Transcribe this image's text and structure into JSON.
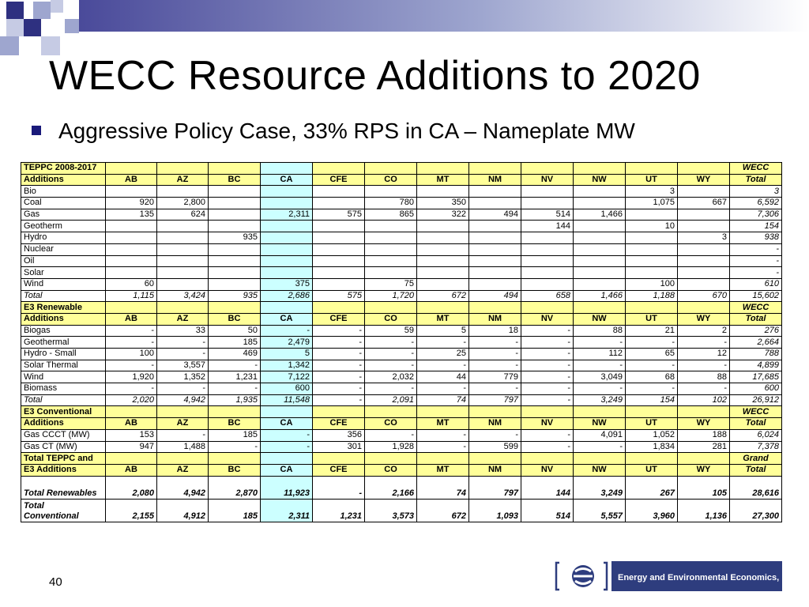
{
  "slide": {
    "title": "WECC Resource Additions to 2020",
    "bullet": "Aggressive Policy Case, 33% RPS in CA – Nameplate MW",
    "page_number": "40",
    "logo_text": "Energy and Environmental Economics, Inc.",
    "colors": {
      "accent": "#1a1a7a",
      "header_fill": "#ffff99",
      "ca_fill": "#ccffff",
      "logo_bg": "#2e3d7e"
    }
  },
  "table": {
    "columns": [
      "AB",
      "AZ",
      "BC",
      "CA",
      "CFE",
      "CO",
      "MT",
      "NM",
      "NV",
      "NW",
      "UT",
      "WY"
    ],
    "sections": [
      {
        "header_label_1": "TEPPC 2008-2017",
        "header_label_2": "Additions",
        "total_header_1": "WECC",
        "total_header_2": "Total",
        "rows": [
          {
            "label": "Bio",
            "cells": [
              "",
              "",
              "",
              "",
              "",
              "",
              "",
              "",
              "",
              "",
              "3",
              ""
            ],
            "total": "3"
          },
          {
            "label": "Coal",
            "cells": [
              "920",
              "2,800",
              "",
              "",
              "",
              "780",
              "350",
              "",
              "",
              "",
              "1,075",
              "667"
            ],
            "total": "6,592"
          },
          {
            "label": "Gas",
            "cells": [
              "135",
              "624",
              "",
              "2,311",
              "575",
              "865",
              "322",
              "494",
              "514",
              "1,466",
              "",
              ""
            ],
            "total": "7,306"
          },
          {
            "label": "Geotherm",
            "cells": [
              "",
              "",
              "",
              "",
              "",
              "",
              "",
              "",
              "144",
              "",
              "10",
              ""
            ],
            "total": "154"
          },
          {
            "label": "Hydro",
            "cells": [
              "",
              "",
              "935",
              "",
              "",
              "",
              "",
              "",
              "",
              "",
              "",
              "3"
            ],
            "total": "938"
          },
          {
            "label": "Nuclear",
            "cells": [
              "",
              "",
              "",
              "",
              "",
              "",
              "",
              "",
              "",
              "",
              "",
              ""
            ],
            "total": "-"
          },
          {
            "label": "Oil",
            "cells": [
              "",
              "",
              "",
              "",
              "",
              "",
              "",
              "",
              "",
              "",
              "",
              ""
            ],
            "total": "-"
          },
          {
            "label": "Solar",
            "cells": [
              "",
              "",
              "",
              "",
              "",
              "",
              "",
              "",
              "",
              "",
              "",
              ""
            ],
            "total": "-"
          },
          {
            "label": "Wind",
            "cells": [
              "60",
              "",
              "",
              "375",
              "",
              "75",
              "",
              "",
              "",
              "",
              "100",
              ""
            ],
            "total": "610"
          }
        ],
        "total_row": {
          "label": "Total",
          "cells": [
            "1,115",
            "3,424",
            "935",
            "2,686",
            "575",
            "1,720",
            "672",
            "494",
            "658",
            "1,466",
            "1,188",
            "670"
          ],
          "total": "15,602"
        }
      },
      {
        "header_label_1": "E3 Renewable",
        "header_label_2": "Additions",
        "total_header_1": "WECC",
        "total_header_2": "Total",
        "rows": [
          {
            "label": "Biogas",
            "cells": [
              "-",
              "33",
              "50",
              "-",
              "-",
              "59",
              "5",
              "18",
              "-",
              "88",
              "21",
              "2"
            ],
            "total": "276"
          },
          {
            "label": "Geothermal",
            "cells": [
              "-",
              "-",
              "185",
              "2,479",
              "-",
              "-",
              "-",
              "-",
              "-",
              "-",
              "-",
              "-"
            ],
            "total": "2,664"
          },
          {
            "label": "Hydro - Small",
            "cells": [
              "100",
              "-",
              "469",
              "5",
              "-",
              "-",
              "25",
              "-",
              "-",
              "112",
              "65",
              "12"
            ],
            "total": "788"
          },
          {
            "label": "Solar Thermal",
            "cells": [
              "-",
              "3,557",
              "-",
              "1,342",
              "-",
              "-",
              "-",
              "-",
              "-",
              "-",
              "-",
              "-"
            ],
            "total": "4,899"
          },
          {
            "label": "Wind",
            "cells": [
              "1,920",
              "1,352",
              "1,231",
              "7,122",
              "-",
              "2,032",
              "44",
              "779",
              "-",
              "3,049",
              "68",
              "88"
            ],
            "total": "17,685"
          },
          {
            "label": "Biomass",
            "cells": [
              "-",
              "-",
              "-",
              "600",
              "-",
              "-",
              "-",
              "-",
              "-",
              "-",
              "-",
              "-"
            ],
            "total": "600"
          }
        ],
        "total_row": {
          "label": "Total",
          "cells": [
            "2,020",
            "4,942",
            "1,935",
            "11,548",
            "-",
            "2,091",
            "74",
            "797",
            "-",
            "3,249",
            "154",
            "102"
          ],
          "total": "26,912"
        }
      },
      {
        "header_label_1": "E3 Conventional",
        "header_label_2": "Additions",
        "total_header_1": "WECC",
        "total_header_2": "Total",
        "rows": [
          {
            "label": "Gas CCCT (MW)",
            "cells": [
              "153",
              "-",
              "185",
              "-",
              "356",
              "-",
              "-",
              "-",
              "-",
              "4,091",
              "1,052",
              "188"
            ],
            "total": "6,024"
          },
          {
            "label": "Gas CT (MW)",
            "cells": [
              "947",
              "1,488",
              "-",
              "-",
              "301",
              "1,928",
              "-",
              "599",
              "-",
              "-",
              "1,834",
              "281"
            ],
            "total": "7,378"
          }
        ]
      }
    ],
    "grand": {
      "header_label_1": "Total TEPPC and",
      "header_label_2": "E3 Additions",
      "total_header_1": "Grand",
      "total_header_2": "Total",
      "rows": [
        {
          "label_1": "",
          "label_2": "Total Renewables",
          "cells": [
            "2,080",
            "4,942",
            "2,870",
            "11,923",
            "-",
            "2,166",
            "74",
            "797",
            "144",
            "3,249",
            "267",
            "105"
          ],
          "total": "28,616"
        },
        {
          "label_1": "Total",
          "label_2": "Conventional",
          "cells": [
            "2,155",
            "4,912",
            "185",
            "2,311",
            "1,231",
            "3,573",
            "672",
            "1,093",
            "514",
            "5,557",
            "3,960",
            "1,136"
          ],
          "total": "27,300"
        }
      ]
    }
  }
}
